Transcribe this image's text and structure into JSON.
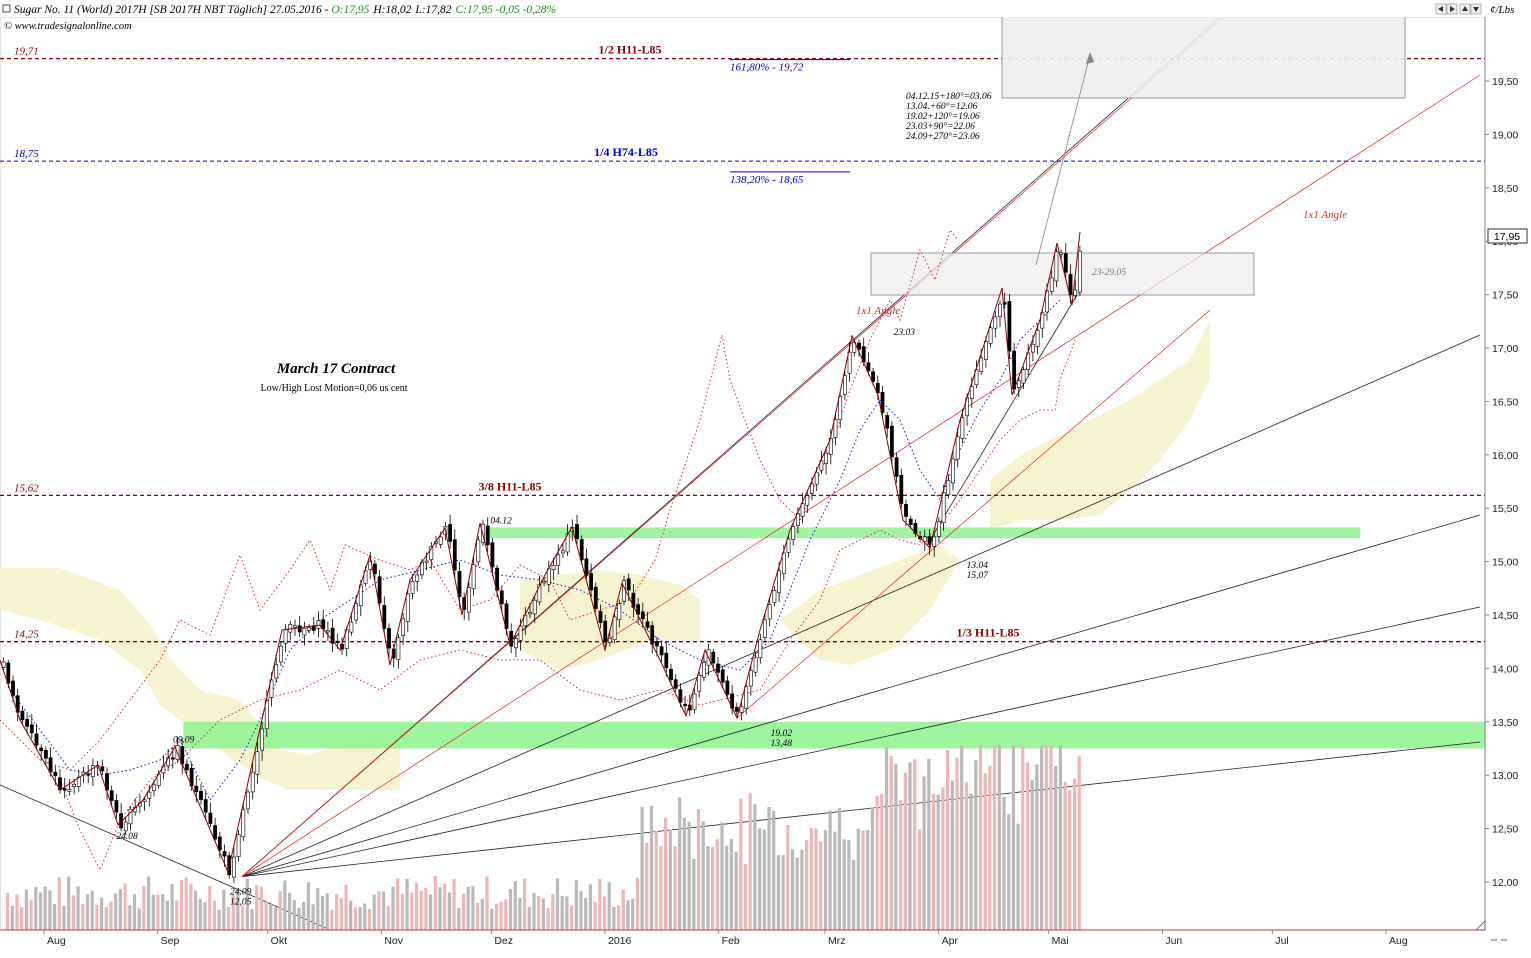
{
  "header": {
    "instrument": "Sugar No. 11 (World) 2017H [SB 2017H NBT  Täglich] 27.05.2016",
    "ohlc_sep": " - ",
    "open": "O:17,95",
    "high": "H:18,02",
    "low": "L:17,82",
    "close": "C:17,95 -0,05 -0,28%",
    "copyright": "© www.tradesignalonline.com",
    "unit": "¢/Lbs"
  },
  "colors": {
    "background": "#ffffff",
    "up_candle": "#ffffff",
    "down_candle": "#000000",
    "support_band": "#8ef28e",
    "cloud": "#f4f2c8",
    "darkred": "#8b0000",
    "blue": "#0000cc",
    "red": "#e8231a",
    "current_box": "#333333"
  },
  "chart_data": {
    "type": "candlestick",
    "title": "March 17 Contract",
    "subtitle": "Low/High Lost Motion=0,06 us cent",
    "y_axis": {
      "ylim": [
        11.55,
        20.1
      ],
      "ticks": [
        "12,00",
        "12,50",
        "13,00",
        "13,50",
        "14,00",
        "14,50",
        "15,00",
        "15,50",
        "16,00",
        "16,50",
        "17,00",
        "17,50",
        "18,00",
        "18,50",
        "19,00",
        "19,50"
      ],
      "tick_values": [
        12,
        12.5,
        13,
        13.5,
        14,
        14.5,
        15,
        15.5,
        16,
        16.5,
        17,
        17.5,
        18,
        18.5,
        19,
        19.5
      ]
    },
    "x_axis": {
      "labels": [
        "Aug",
        "Sep",
        "Okt",
        "Nov",
        "Dez",
        "2016",
        "Feb",
        "Mrz",
        "Apr",
        "Mai",
        "Jun",
        "Jul",
        "Aug"
      ],
      "month_start_dates": [
        "2015-08-01",
        "2015-09-01",
        "2015-10-01",
        "2015-11-01",
        "2015-12-01",
        "2016-01-01",
        "2016-02-01",
        "2016-03-01",
        "2016-04-01",
        "2016-05-01",
        "2016-06-01",
        "2016-07-01",
        "2016-08-01"
      ],
      "range": [
        "2015-07-20",
        "2016-08-28"
      ]
    },
    "current_price": {
      "label": "17,95",
      "value": 17.95
    },
    "horizontal_levels": [
      {
        "label": "19,71",
        "value": 19.71,
        "name": "1/2 H11-L85",
        "style": "darkred"
      },
      {
        "label": "18,75",
        "value": 18.75,
        "name": "1/4 H74-L85",
        "style": "blue"
      },
      {
        "label": "15,62",
        "value": 15.62,
        "name": "3/8 H11-L85",
        "style": "darkred"
      },
      {
        "label": "14,25",
        "value": 14.25,
        "name": "1/3 H11-L85",
        "style": "darkred"
      }
    ],
    "fib_levels": [
      {
        "label": "161,80% - 19,72",
        "value": 19.72
      },
      {
        "label": "138,20% - 18,65",
        "value": 18.65
      }
    ],
    "support_bands": [
      {
        "from": 13.25,
        "to": 13.5,
        "start": "2015-09-08",
        "end": "2016-08-28"
      },
      {
        "from": 15.22,
        "to": 15.32,
        "start": "2015-11-30",
        "end": "2016-07-25"
      }
    ],
    "swing_points": [
      {
        "date": "2015-08-24",
        "value": 12.55,
        "label": "24.08"
      },
      {
        "date": "2015-09-09",
        "value": 13.25,
        "label": "09.09"
      },
      {
        "date": "2015-09-24",
        "value": 12.05,
        "label": "24.09\n12,05"
      },
      {
        "date": "2015-12-04",
        "value": 15.3,
        "label": "04.12"
      },
      {
        "date": "2016-02-19",
        "value": 13.48,
        "label": "19.02\n13,48"
      },
      {
        "date": "2016-03-23",
        "value": 17.03,
        "label": "23.03"
      },
      {
        "date": "2016-04-13",
        "value": 15.07,
        "label": "13.04\n15,07"
      }
    ],
    "time_projection_note": [
      "04.12.15+180°=03.06",
      "13.04.+60°=12.06",
      "19.02+120°=19.06",
      "23.03+90°=22.06",
      "24.09+270°=23.06"
    ],
    "time_window_label": "23-29.05",
    "annotations": [
      "1x1 Angle",
      "1x1 Angle"
    ]
  }
}
